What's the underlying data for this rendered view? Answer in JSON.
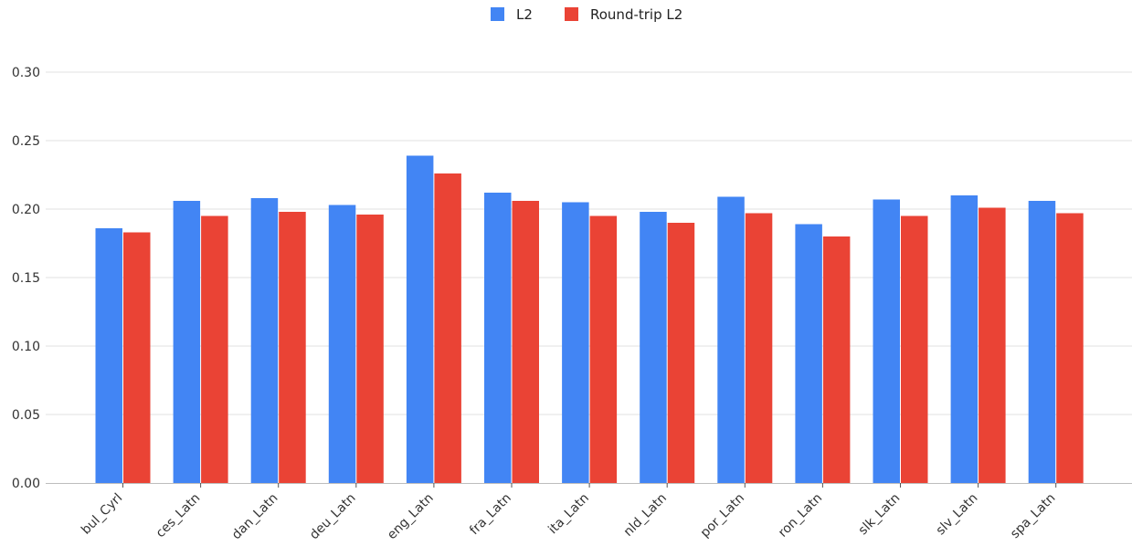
{
  "chart_data": {
    "type": "bar",
    "title": "",
    "xlabel": "",
    "ylabel": "",
    "categories": [
      "bul_Cyrl",
      "ces_Latn",
      "dan_Latn",
      "deu_Latn",
      "eng_Latn",
      "fra_Latn",
      "ita_Latn",
      "nld_Latn",
      "por_Latn",
      "ron_Latn",
      "slk_Latn",
      "slv_Latn",
      "spa_Latn"
    ],
    "series": [
      {
        "name": "L2",
        "color": "#4285f4",
        "values": [
          0.186,
          0.206,
          0.208,
          0.203,
          0.239,
          0.212,
          0.205,
          0.198,
          0.209,
          0.189,
          0.207,
          0.21,
          0.206
        ]
      },
      {
        "name": "Round-trip L2",
        "color": "#ea4335",
        "values": [
          0.183,
          0.195,
          0.198,
          0.196,
          0.226,
          0.206,
          0.195,
          0.19,
          0.197,
          0.18,
          0.195,
          0.201,
          0.197
        ]
      }
    ],
    "ylim": [
      0,
      0.3
    ],
    "yticks": [
      "0.00",
      "0.05",
      "0.10",
      "0.15",
      "0.20",
      "0.25",
      "0.30"
    ],
    "legend_position": "top-center",
    "grid": "horizontal"
  }
}
